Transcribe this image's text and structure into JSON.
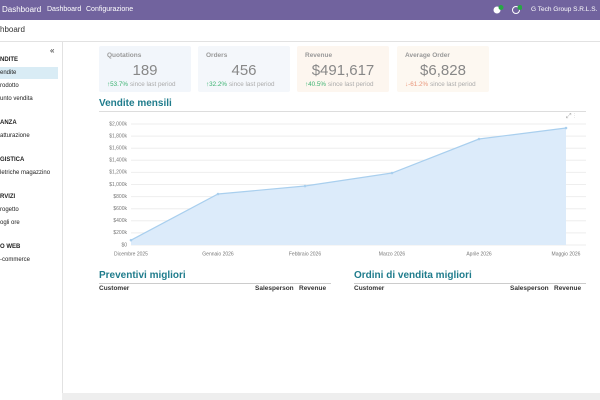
{
  "topbar": {
    "brand": "Dashboard",
    "menu": [
      "Dashboard",
      "Configurazione"
    ],
    "company": "G Tech Group S.R.L.S."
  },
  "breadcrumb": "hboard",
  "sidebar": {
    "collapse": "«",
    "sections": [
      {
        "title": "NDITE",
        "items": [
          "endite",
          "rodotto",
          "unto vendita"
        ]
      },
      {
        "title": "ANZA",
        "items": [
          "atturazione"
        ]
      },
      {
        "title": "GISTICA",
        "items": [
          "letriche magazzino"
        ]
      },
      {
        "title": "RVIZI",
        "items": [
          "rogetto",
          "ogli ore"
        ]
      },
      {
        "title": "O WEB",
        "items": [
          "-commerce"
        ]
      }
    ]
  },
  "kpis": [
    {
      "title": "Quotations",
      "value": "189",
      "change": "53.7%",
      "note": "since last period",
      "trend": "up"
    },
    {
      "title": "Orders",
      "value": "456",
      "change": "32.2%",
      "note": "since last period",
      "trend": "up"
    },
    {
      "title": "Revenue",
      "value": "$491,617",
      "change": "40.5%",
      "note": "since last period",
      "trend": "up"
    },
    {
      "title": "Average Order",
      "value": "$6,828",
      "change": "-61.2%",
      "note": "since last period",
      "trend": "down"
    }
  ],
  "chart_data": {
    "type": "line",
    "title": "Vendite mensili",
    "categories": [
      "Dicembre 2025",
      "Gennaio 2026",
      "Febbraio 2026",
      "Marzo 2026",
      "Aprile 2026",
      "Maggio 2026"
    ],
    "values": [
      80000,
      843000,
      975000,
      1190000,
      1752000,
      1934000
    ],
    "color": "#a9cfee",
    "fill": "#dcebfa",
    "ylim": [
      0,
      2000000
    ],
    "yticks": [
      {
        "value": 0,
        "label": "$0"
      },
      {
        "value": 200000,
        "label": "$200k"
      },
      {
        "value": 400000,
        "label": "$400k"
      },
      {
        "value": 600000,
        "label": "$600k"
      },
      {
        "value": 800000,
        "label": "$800k"
      },
      {
        "value": 1000000,
        "label": "$1,000k"
      },
      {
        "value": 1200000,
        "label": "$1,200k"
      },
      {
        "value": 1400000,
        "label": "$1,400k"
      },
      {
        "value": 1600000,
        "label": "$1,600k"
      },
      {
        "value": 1800000,
        "label": "$1,800k"
      },
      {
        "value": 2000000,
        "label": "$2,000k"
      }
    ],
    "grid": true
  },
  "tables": [
    {
      "title": "Preventivi migliori",
      "columns": [
        "Customer",
        "Salesperson",
        "Revenue"
      ]
    },
    {
      "title": "Ordini di vendita migliori",
      "columns": [
        "Customer",
        "Salesperson",
        "Revenue"
      ]
    }
  ]
}
